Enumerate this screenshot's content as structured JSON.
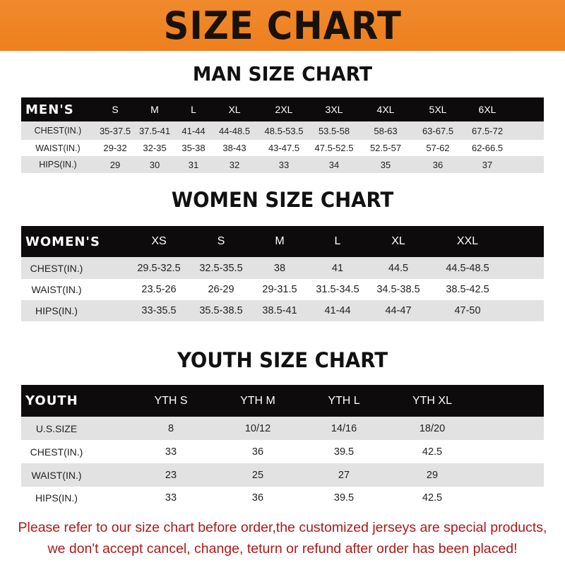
{
  "title": "SIZE CHART",
  "colors": {
    "banner": "#ee7f1e",
    "header_row": "#0d0b0b",
    "stripe": "#e2e2e2",
    "note": "#b01818"
  },
  "men": {
    "heading": "MAN SIZE CHART",
    "label": "MEN'S",
    "sizes": [
      "S",
      "M",
      "L",
      "XL",
      "2XL",
      "3XL",
      "4XL",
      "5XL",
      "6XL"
    ],
    "rows": [
      {
        "label": "CHEST(IN.)",
        "values": [
          "35-37.5",
          "37.5-41",
          "41-44",
          "44-48.5",
          "48.5-53.5",
          "53.5-58",
          "58-63",
          "63-67.5",
          "67.5-72"
        ]
      },
      {
        "label": "WAIST(IN.)",
        "values": [
          "29-32",
          "32-35",
          "35-38",
          "38-43",
          "43-47.5",
          "47.5-52.5",
          "52.5-57",
          "57-62",
          "62-66.5"
        ]
      },
      {
        "label": "HIPS(IN.)",
        "values": [
          "29",
          "30",
          "31",
          "32",
          "33",
          "34",
          "35",
          "36",
          "37"
        ]
      }
    ]
  },
  "women": {
    "heading": "WOMEN SIZE CHART",
    "label": "WOMEN'S",
    "sizes": [
      "XS",
      "S",
      "M",
      "L",
      "XL",
      "XXL"
    ],
    "rows": [
      {
        "label": "CHEST(IN.)",
        "values": [
          "29.5-32.5",
          "32.5-35.5",
          "38",
          "41",
          "44.5",
          "44.5-48.5"
        ]
      },
      {
        "label": "WAIST(IN.)",
        "values": [
          "23.5-26",
          "26-29",
          "29-31.5",
          "31.5-34.5",
          "34.5-38.5",
          "38.5-42.5"
        ]
      },
      {
        "label": "HIPS(IN.)",
        "values": [
          "33-35.5",
          "35.5-38.5",
          "38.5-41",
          "41-44",
          "44-47",
          "47-50"
        ]
      }
    ]
  },
  "youth": {
    "heading": "YOUTH SIZE CHART",
    "label": "YOUTH",
    "sizes": [
      "YTH S",
      "YTH M",
      "YTH L",
      "YTH XL"
    ],
    "rows": [
      {
        "label": "U.S.SIZE",
        "values": [
          "8",
          "10/12",
          "14/16",
          "18/20"
        ]
      },
      {
        "label": "CHEST(IN.)",
        "values": [
          "33",
          "36",
          "39.5",
          "42.5"
        ]
      },
      {
        "label": "WAIST(IN.)",
        "values": [
          "23",
          "25",
          "27",
          "29"
        ]
      },
      {
        "label": "HIPS(IN.)",
        "values": [
          "33",
          "36",
          "39.5",
          "42.5"
        ]
      }
    ]
  },
  "note": {
    "line1": "Please refer to our size chart before order,the customized jerseys are special products,",
    "line2": "we don't accept cancel, change, teturn or refund after order has been placed!"
  }
}
